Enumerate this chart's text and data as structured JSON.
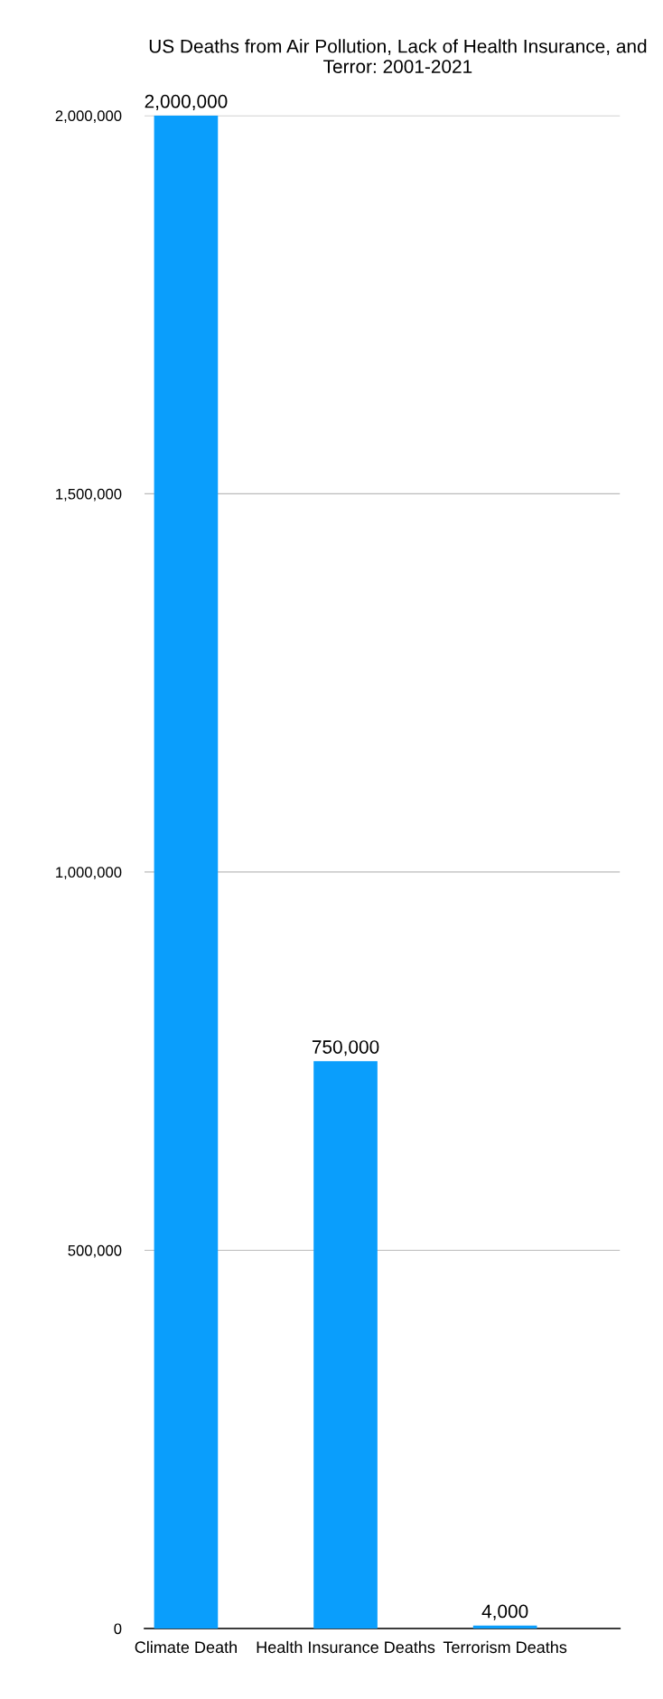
{
  "chart_data": {
    "type": "bar",
    "title": "US Deaths from Air Pollution, Lack of Health Insurance, and Terror: 2001-2021",
    "categories": [
      "Climate Death",
      "Health Insurance Deaths",
      "Terrorism Deaths"
    ],
    "values": [
      2000000,
      750000,
      4000
    ],
    "value_labels": [
      "2,000,000",
      "750,000",
      "4,000"
    ],
    "color": "#0a9efc",
    "ylim": [
      0,
      2000000
    ],
    "yticks": [
      0,
      {
        "value": 500000,
        "label": "500,000"
      },
      {
        "value": 1000000,
        "label": "1,000,000"
      },
      {
        "value": 1500000,
        "label": "1,500,000"
      },
      {
        "value": 2000000,
        "label": "2,000,000"
      }
    ],
    "grid": "y"
  }
}
